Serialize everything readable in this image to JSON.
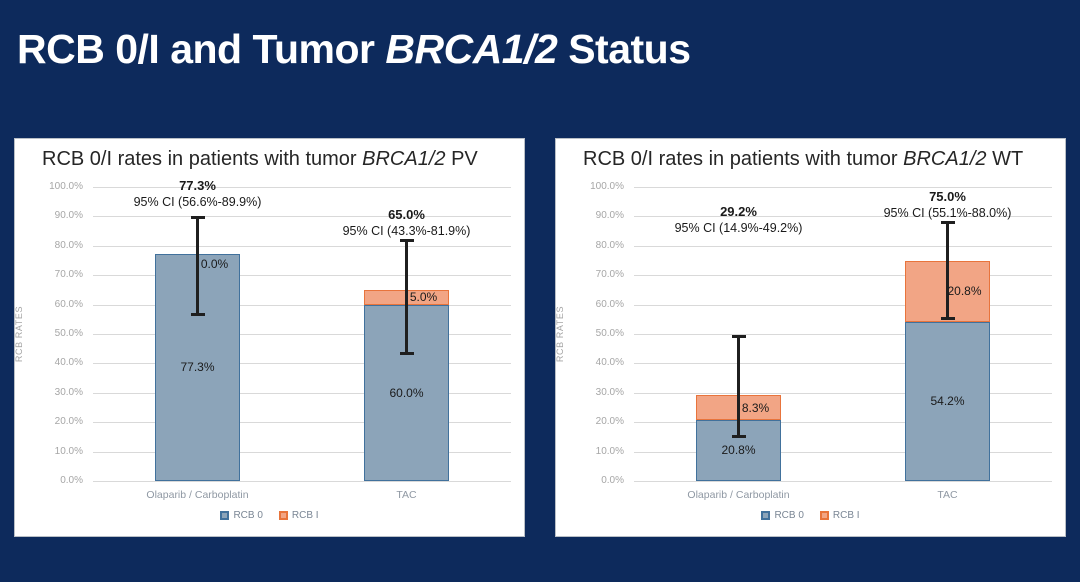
{
  "slide": {
    "title_prefix": "RCB 0/I and Tumor ",
    "title_italic": "BRCA1/2",
    "title_suffix": " Status",
    "background": "#0d2a5c",
    "title_color": "#ffffff",
    "panel_background": "#ffffff"
  },
  "colors": {
    "rcb0_fill": "#8ca4b9",
    "rcb0_border": "#41719c",
    "rcb1_fill": "#f2a585",
    "rcb1_border": "#e8743c",
    "gridline": "#d9d9d9",
    "tick_label": "#a6a6a6",
    "category_label": "#8f98a3",
    "legend_label": "#7a8694",
    "error_bar": "#1f1f1f",
    "data_label": "#1a1a1a",
    "annotation": "#1a1a1a"
  },
  "chart_data": [
    {
      "type": "bar",
      "stacked": true,
      "title_prefix": "RCB 0/I rates in patients with tumor ",
      "title_italic": "BRCA1/2",
      "title_suffix": " PV",
      "categories": [
        "Olaparib / Carboplatin",
        "TAC"
      ],
      "series": [
        {
          "name": "RCB 0",
          "values": [
            77.3,
            60.0
          ],
          "labels": [
            "77.3%",
            "60.0%"
          ]
        },
        {
          "name": "RCB I",
          "values": [
            0.0,
            5.0
          ],
          "labels": [
            "0.0%",
            "5.0%"
          ]
        }
      ],
      "totals": [
        {
          "value": 77.3,
          "label": "77.3%",
          "ci_label": "95% CI (56.6%-89.9%)",
          "ci_low": 56.6,
          "ci_high": 89.9,
          "ann_pct": 100.3
        },
        {
          "value": 65.0,
          "label": "65.0%",
          "ci_label": "95% CI (43.3%-81.9%)",
          "ci_low": 43.3,
          "ci_high": 81.9,
          "ann_pct": 90.5
        }
      ],
      "ylabel": "RCB RATES",
      "ylim": [
        0,
        100
      ],
      "ytick_step": 10,
      "ytick_format": "percent_1dp",
      "grid": true,
      "legend_position": "bottom"
    },
    {
      "type": "bar",
      "stacked": true,
      "title_prefix": "RCB 0/I rates in patients with tumor ",
      "title_italic": "BRCA1/2",
      "title_suffix": " WT",
      "categories": [
        "Olaparib / Carboplatin",
        "TAC"
      ],
      "series": [
        {
          "name": "RCB 0",
          "values": [
            20.8,
            54.2
          ],
          "labels": [
            "20.8%",
            "54.2%"
          ]
        },
        {
          "name": "RCB I",
          "values": [
            8.3,
            20.8
          ],
          "labels": [
            "8.3%",
            "20.8%"
          ]
        }
      ],
      "totals": [
        {
          "value": 29.2,
          "label": "29.2%",
          "ci_label": "95% CI (14.9%-49.2%)",
          "ci_low": 14.9,
          "ci_high": 49.2,
          "ann_pct": 91.5
        },
        {
          "value": 75.0,
          "label": "75.0%",
          "ci_label": "95% CI (55.1%-88.0%)",
          "ci_low": 55.1,
          "ci_high": 88.0,
          "ann_pct": 96.6
        }
      ],
      "ylabel": "RCB RATES",
      "ylim": [
        0,
        100
      ],
      "ytick_step": 10,
      "ytick_format": "percent_1dp",
      "grid": true,
      "legend_position": "bottom"
    }
  ]
}
